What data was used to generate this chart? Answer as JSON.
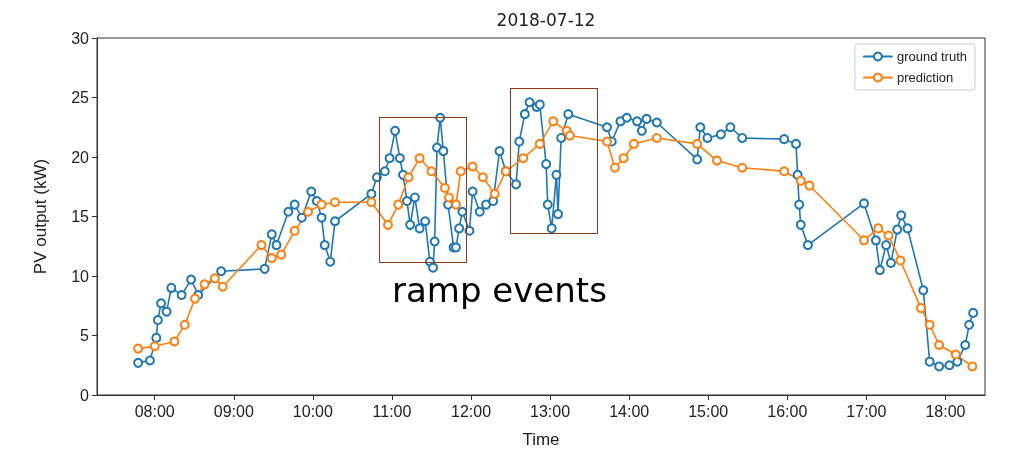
{
  "chart_data": {
    "type": "line",
    "title": "2018-07-12",
    "xlabel": "Time",
    "ylabel": "PV output (kW)",
    "annotations": [
      "ramp events"
    ],
    "xlim": [
      7.27,
      18.5
    ],
    "xticks": [
      {
        "value": 8,
        "label": "08:00"
      },
      {
        "value": 9,
        "label": "09:00"
      },
      {
        "value": 10,
        "label": "10:00"
      },
      {
        "value": 11,
        "label": "11:00"
      },
      {
        "value": 12,
        "label": "12:00"
      },
      {
        "value": 13,
        "label": "13:00"
      },
      {
        "value": 14,
        "label": "14:00"
      },
      {
        "value": 15,
        "label": "15:00"
      },
      {
        "value": 16,
        "label": "16:00"
      },
      {
        "value": 17,
        "label": "17:00"
      },
      {
        "value": 18,
        "label": "18:00"
      }
    ],
    "ylim": [
      0,
      30
    ],
    "yticks": [
      0,
      5,
      10,
      15,
      20,
      25,
      30
    ],
    "grid": false,
    "legend": "top right",
    "marker": "circle",
    "line_style": "solid",
    "series": [
      {
        "name": "ground truth",
        "color": "#1f77b4",
        "x": [
          7.79,
          7.94,
          8.02,
          8.04,
          8.08,
          8.15,
          8.21,
          8.34,
          8.46,
          8.55,
          8.84,
          9.39,
          9.48,
          9.54,
          9.69,
          9.77,
          9.86,
          9.98,
          10.05,
          10.11,
          10.15,
          10.22,
          10.28,
          10.74,
          10.81,
          10.91,
          10.97,
          11.04,
          11.1,
          11.14,
          11.19,
          11.23,
          11.29,
          11.35,
          11.42,
          11.48,
          11.52,
          11.54,
          11.57,
          11.61,
          11.65,
          11.71,
          11.78,
          11.81,
          11.85,
          11.89,
          11.98,
          12.02,
          12.11,
          12.19,
          12.28,
          12.36,
          12.44,
          12.57,
          12.61,
          12.68,
          12.74,
          12.83,
          12.87,
          12.95,
          12.97,
          13.02,
          13.08,
          13.1,
          13.14,
          13.23,
          13.72,
          13.78,
          13.89,
          13.97,
          14.1,
          14.16,
          14.22,
          14.35,
          14.86,
          14.9,
          14.99,
          15.16,
          15.28,
          15.43,
          15.96,
          16.11,
          16.13,
          16.15,
          16.17,
          16.26,
          16.97,
          17.12,
          17.17,
          17.25,
          17.31,
          17.39,
          17.44,
          17.52,
          17.72,
          17.8,
          17.92,
          18.05,
          18.15,
          18.25,
          18.3,
          18.35
        ],
        "values": [
          2.7,
          2.9,
          4.8,
          6.3,
          7.7,
          7.0,
          9.0,
          8.4,
          9.7,
          8.4,
          10.4,
          10.6,
          13.5,
          12.6,
          15.4,
          16.0,
          14.9,
          17.1,
          16.3,
          14.9,
          12.6,
          11.2,
          14.6,
          16.9,
          18.3,
          18.8,
          19.9,
          22.2,
          19.9,
          18.5,
          16.3,
          14.3,
          16.6,
          14.0,
          14.6,
          11.2,
          10.7,
          12.9,
          20.8,
          23.3,
          20.5,
          16.0,
          12.4,
          12.4,
          14.0,
          15.4,
          13.8,
          17.1,
          15.4,
          16.0,
          16.3,
          20.5,
          18.8,
          17.7,
          21.3,
          23.6,
          24.6,
          24.2,
          24.4,
          19.4,
          16.0,
          14.0,
          18.5,
          15.2,
          21.6,
          23.6,
          22.5,
          21.3,
          23.0,
          23.3,
          23.0,
          22.2,
          23.2,
          22.9,
          19.8,
          22.5,
          21.6,
          21.9,
          22.5,
          21.6,
          21.5,
          21.1,
          18.5,
          16.0,
          14.3,
          12.6,
          16.1,
          13.0,
          10.5,
          12.6,
          11.1,
          13.9,
          15.1,
          14.0,
          8.8,
          2.8,
          2.4,
          2.5,
          2.8,
          4.2,
          5.9,
          6.9
        ]
      },
      {
        "name": "prediction",
        "color": "#ff7f0e",
        "x": [
          7.79,
          8.0,
          8.25,
          8.38,
          8.51,
          8.63,
          8.76,
          8.86,
          9.35,
          9.48,
          9.6,
          9.77,
          9.94,
          10.11,
          10.28,
          10.74,
          10.95,
          11.08,
          11.21,
          11.35,
          11.5,
          11.67,
          11.72,
          11.81,
          11.87,
          12.02,
          12.15,
          12.3,
          12.44,
          12.66,
          12.87,
          13.04,
          13.21,
          13.25,
          13.72,
          13.82,
          13.93,
          14.06,
          14.35,
          14.86,
          15.11,
          15.43,
          15.96,
          16.17,
          16.28,
          16.97,
          17.15,
          17.28,
          17.43,
          17.69,
          17.8,
          17.92,
          18.13,
          18.34
        ],
        "values": [
          3.9,
          4.1,
          4.5,
          5.9,
          8.1,
          9.3,
          9.8,
          9.1,
          12.6,
          11.5,
          11.8,
          13.8,
          15.4,
          16.0,
          16.2,
          16.2,
          14.3,
          16.0,
          18.3,
          19.9,
          18.8,
          17.4,
          16.6,
          16.0,
          18.8,
          19.2,
          18.3,
          16.9,
          18.8,
          19.9,
          21.1,
          23.0,
          22.2,
          21.8,
          21.3,
          19.1,
          19.9,
          21.1,
          21.6,
          21.1,
          19.7,
          19.1,
          18.8,
          18.0,
          17.6,
          13.0,
          14.0,
          13.4,
          11.3,
          7.3,
          5.9,
          4.2,
          3.4,
          2.4
        ]
      }
    ]
  }
}
